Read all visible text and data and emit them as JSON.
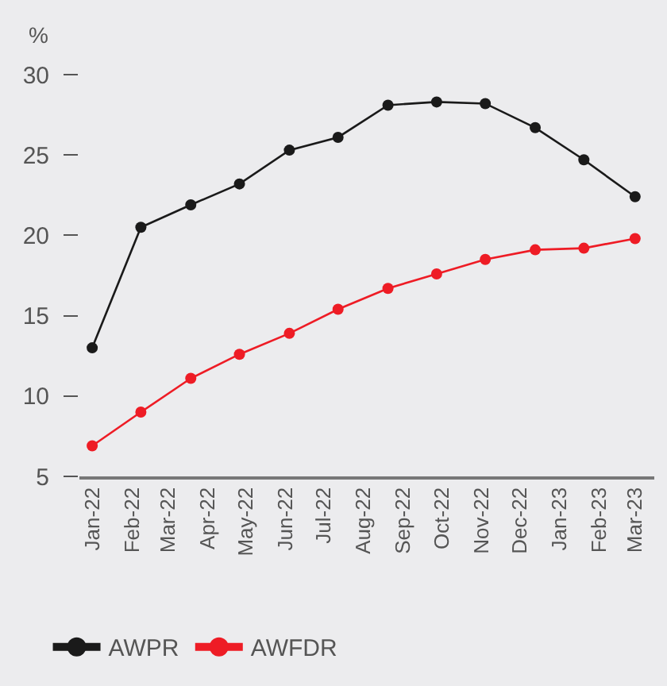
{
  "chart_data": {
    "type": "line",
    "ylabel": "%",
    "x": [
      "2022-01-01",
      "2022-02-08",
      "2022-03-19",
      "2022-04-26",
      "2022-06-04",
      "2022-07-12",
      "2022-08-20",
      "2022-09-27",
      "2022-11-04",
      "2022-12-13",
      "2023-01-20",
      "2023-03-01"
    ],
    "series": [
      {
        "name": "AWPR",
        "color": "#1a1a1a",
        "values": [
          13.0,
          20.5,
          21.9,
          23.2,
          25.3,
          26.1,
          28.1,
          28.3,
          28.2,
          26.7,
          24.7,
          22.4
        ]
      },
      {
        "name": "AWFDR",
        "color": "#ee1c25",
        "values": [
          6.9,
          9.0,
          11.1,
          12.6,
          13.9,
          15.4,
          16.7,
          17.6,
          18.5,
          19.1,
          19.2,
          19.8
        ]
      }
    ],
    "xlim": [
      "2021-12-22",
      "2023-03-16"
    ],
    "xticks": [
      {
        "value": "2022-01",
        "label": "Jan-22"
      },
      {
        "value": "2022-02",
        "label": "Feb-22"
      },
      {
        "value": "2022-03",
        "label": "Mar-22"
      },
      {
        "value": "2022-04",
        "label": "Apr-22"
      },
      {
        "value": "2022-05",
        "label": "May-22"
      },
      {
        "value": "2022-06",
        "label": "Jun-22"
      },
      {
        "value": "2022-07",
        "label": "Jul-22"
      },
      {
        "value": "2022-08",
        "label": "Aug-22"
      },
      {
        "value": "2022-09",
        "label": "Sep-22"
      },
      {
        "value": "2022-10",
        "label": "Oct-22"
      },
      {
        "value": "2022-11",
        "label": "Nov-22"
      },
      {
        "value": "2022-12",
        "label": "Dec-22"
      },
      {
        "value": "2023-01",
        "label": "Jan-23"
      },
      {
        "value": "2023-02",
        "label": "Feb-23"
      },
      {
        "value": "2023-03",
        "label": "Mar-23"
      }
    ],
    "ylim": [
      5,
      30
    ],
    "yticks": [
      5,
      10,
      15,
      20,
      25,
      30
    ],
    "grid": false,
    "legend": "bottom left",
    "marker": "circle",
    "line_style": "solid"
  }
}
